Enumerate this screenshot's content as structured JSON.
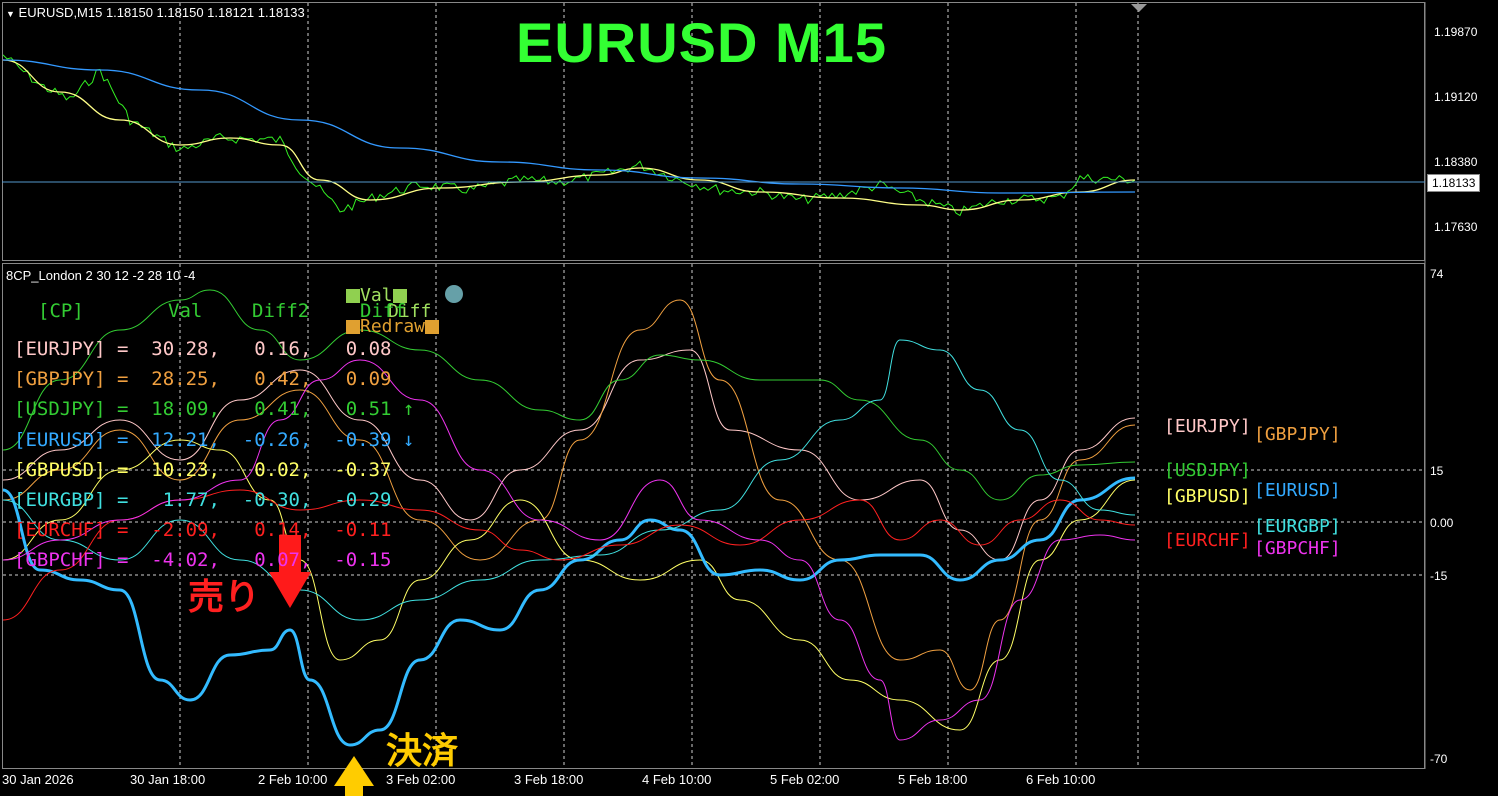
{
  "main_chart": {
    "header": "EURUSD,M15  1.18150 1.18150 1.18121 1.18133",
    "title": "EURUSD  M15",
    "price_scale": [
      "1.19870",
      "1.19120",
      "1.18380",
      "1.17630"
    ],
    "current_price": "1.18133"
  },
  "indicator": {
    "header": "8CP_London 2 30 12 -2 28 10 -4",
    "scale": [
      "74",
      "15",
      "0.00",
      "-15",
      "-70"
    ],
    "buttons": {
      "val": "Val",
      "diff": "Diff",
      "redraw": "Redraw"
    },
    "table_header": {
      "cp": "[CP]",
      "val": "Val",
      "diff2": "Diff2",
      "diff": "Diff"
    },
    "rows": [
      {
        "pair": "[EURJPY]",
        "text": " =  30.28,   0.16,   0.08",
        "color": "#ffc8c8"
      },
      {
        "pair": "[GBPJPY]",
        "text": " =  28.25,   0.42,   0.09",
        "color": "#f0a040"
      },
      {
        "pair": "[USDJPY]",
        "text": " =  18.09,   0.41,   0.51 ↑",
        "color": "#33cc33"
      },
      {
        "pair": "[EURUSD]",
        "text": " =  12.21,  -0.26,  -0.39 ↓",
        "color": "#33aaff"
      },
      {
        "pair": "[GBPUSD]",
        "text": " =  10.23,   0.02,  -0.37",
        "color": "#ffff66"
      },
      {
        "pair": "[EURGBP]",
        "text": " =   1.77,  -0.30,  -0.29",
        "color": "#40e0e0"
      },
      {
        "pair": "[EURCHF]",
        "text": " =  -2.09,   0.14,  -0.11",
        "color": "#ff2020"
      },
      {
        "pair": "[GBPCHF]",
        "text": " =  -4.02,   0.07,  -0.15",
        "color": "#ee33ee"
      }
    ],
    "legend": [
      {
        "label": "[EURJPY]",
        "color": "#ffc8c8"
      },
      {
        "label": "[GBPJPY]",
        "color": "#f0a040"
      },
      {
        "label": "[USDJPY]",
        "color": "#33cc33"
      },
      {
        "label": "[GBPUSD]",
        "color": "#ffff66"
      },
      {
        "label": "[EURUSD]",
        "color": "#33aaff"
      },
      {
        "label": "[EURGBP]",
        "color": "#40e0e0"
      },
      {
        "label": "[EURCHF]",
        "color": "#ff2020"
      },
      {
        "label": "[GBPCHF]",
        "color": "#ee33ee"
      }
    ]
  },
  "annotations": {
    "sell": "売り",
    "settle": "決済"
  },
  "time_axis": [
    "30 Jan 2026",
    "30 Jan 18:00",
    "2 Feb 10:00",
    "3 Feb 02:00",
    "3 Feb 18:00",
    "4 Feb 10:00",
    "5 Feb 02:00",
    "5 Feb 18:00",
    "6 Feb 10:00"
  ],
  "colors": {
    "background": "#000000",
    "grid": "#c8c8c8",
    "price_line": "#33ff33",
    "ma_fast": "#ffff99",
    "ma_slow": "#3399ff",
    "sell": "#ff2020",
    "settle": "#ffcc00"
  }
}
